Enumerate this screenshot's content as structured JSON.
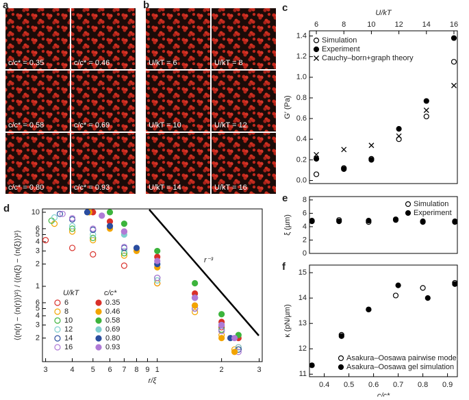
{
  "images": {
    "a": {
      "panel_label": "a",
      "labels": [
        "c/c* = 0.35",
        "c/c* = 0.46",
        "c/c* = 0.58",
        "c/c* = 0.69",
        "c/c* = 0.80",
        "c/c* = 0.93"
      ]
    },
    "b": {
      "panel_label": "b",
      "labels": [
        "U/kT = 6",
        "U/kT = 8",
        "U/kT = 10",
        "U/kT = 12",
        "U/kT = 14",
        "U/kT = 16"
      ]
    }
  },
  "chart_data": [
    {
      "type": "scatter",
      "panel_label": "c",
      "xlabel": "U/kT",
      "ylabel": "G′ (Pa)",
      "xaxis_position": "top",
      "legend": "upper left",
      "x": [
        6,
        8,
        10,
        12,
        14,
        16
      ],
      "xlim": [
        5.5,
        16.25
      ],
      "xticks": [
        6,
        8,
        10,
        12,
        14,
        16
      ],
      "ylim": [
        -0.03,
        1.45
      ],
      "yticks": [
        {
          "value": 0,
          "label": "0.0"
        },
        0.2,
        0.4,
        0.6,
        0.8,
        {
          "value": 1,
          "label": "1.0"
        },
        1.2,
        1.4
      ],
      "series": [
        {
          "name": "Simulation",
          "marker": "open",
          "color": "#000000",
          "values": [
            0.06,
            0.12,
            0.21,
            0.4,
            0.62,
            1.15
          ]
        },
        {
          "name": "Experiment",
          "marker": "filled",
          "color": "#000000",
          "values": [
            0.21,
            0.11,
            0.2,
            0.5,
            0.77,
            1.38
          ]
        },
        {
          "name": "Cauchy–born+graph theory",
          "marker": "x",
          "color": "#000000",
          "values": [
            0.25,
            0.3,
            0.34,
            0.43,
            0.68,
            0.92
          ]
        }
      ]
    },
    {
      "type": "scatter",
      "panel_label": "e",
      "ylabel": "ξ (µm)",
      "legend": "upper right",
      "x": [
        0.35,
        0.46,
        0.58,
        0.69,
        0.8,
        0.93
      ],
      "xlim": [
        0.34,
        0.94
      ],
      "ylim": [
        0,
        8.5
      ],
      "yticks": [
        0,
        2,
        4,
        6,
        8
      ],
      "series": [
        {
          "name": "Simulation",
          "marker": "open",
          "color": "#000000",
          "values": [
            4.9,
            5.0,
            4.7,
            5.1,
            4.8,
            4.8
          ]
        },
        {
          "name": "Experiment",
          "marker": "filled",
          "color": "#000000",
          "values": [
            4.8,
            4.8,
            4.9,
            5.0,
            4.7,
            4.7
          ]
        }
      ]
    },
    {
      "type": "scatter",
      "panel_label": "f",
      "xlabel": "c/c*",
      "ylabel": "κ (pN/µm)",
      "legend": "lower right",
      "xlim": [
        0.34,
        0.94
      ],
      "xticks": [
        0.4,
        0.5,
        0.6,
        0.7,
        0.8,
        0.9
      ],
      "ylim": [
        10.9,
        15.3
      ],
      "yticks": [
        11,
        12,
        13,
        14,
        15
      ],
      "series": [
        {
          "name": "Asakura–Oosawa pairwise model",
          "marker": "open",
          "color": "#000000",
          "x": [
            0.47,
            0.58,
            0.69,
            0.8,
            0.93
          ],
          "values": [
            12.55,
            13.55,
            14.1,
            14.4,
            14.6
          ]
        },
        {
          "name": "Asakura–Oosawa gel simulation",
          "marker": "filled",
          "color": "#000000",
          "x": [
            0.35,
            0.47,
            0.58,
            0.7,
            0.82,
            0.93
          ],
          "values": [
            11.35,
            12.5,
            13.55,
            14.5,
            14.0,
            14.55
          ]
        }
      ]
    },
    {
      "type": "scatter",
      "panel_label": "d",
      "xlabel": "r/ξ",
      "ylabel": "⟨(n(r) − ⟨n(r)⟩)²⟩ / ⟨(n(ξ) − ⟨n(ξ)⟩)²⟩",
      "xlog": true,
      "ylog": true,
      "legend_titles": [
        "U/kT",
        "c/c*"
      ],
      "annotation": "r⁻³",
      "xlim": [
        0.29,
        3.1
      ],
      "xticks": [
        {
          "value": 0.3,
          "label": "3"
        },
        {
          "value": 0.4,
          "label": "4"
        },
        {
          "value": 0.5,
          "label": "5"
        },
        {
          "value": 0.6,
          "label": "6"
        },
        {
          "value": 0.7,
          "label": "7"
        },
        {
          "value": 0.8,
          "label": "8"
        },
        {
          "value": 0.9,
          "label": "9"
        },
        1,
        2,
        3
      ],
      "ylim": [
        0.096,
        11.1
      ],
      "yticks": [
        {
          "value": 0.2,
          "label": "2"
        },
        {
          "value": 0.3,
          "label": "3"
        },
        {
          "value": 0.4,
          "label": "4"
        },
        {
          "value": 0.5,
          "label": "5"
        },
        {
          "value": 0.6,
          "label": "6"
        },
        1,
        2,
        3,
        4,
        5,
        6,
        10
      ],
      "series": [
        {
          "name": "6",
          "marker": "open",
          "color": "#d9302a",
          "x": [
            0.3,
            0.4,
            0.5,
            0.7,
            1,
            1.5,
            2,
            2.4
          ],
          "values": [
            4.2,
            3.3,
            2.7,
            1.9,
            1.1,
            0.55,
            0.28,
            0.15
          ]
        },
        {
          "name": "8",
          "marker": "open",
          "color": "#f2a400",
          "x": [
            0.33,
            0.4,
            0.5,
            0.7,
            1,
            1.5,
            2,
            2.3
          ],
          "values": [
            7,
            5.5,
            4.2,
            2.6,
            1.1,
            0.45,
            0.22,
            0.14
          ]
        },
        {
          "name": "10",
          "marker": "open",
          "color": "#3cb43c",
          "x": [
            0.32,
            0.4,
            0.5,
            0.7,
            1,
            1.5,
            2,
            2.4
          ],
          "values": [
            7.7,
            6,
            4.5,
            2.8,
            1.2,
            0.5,
            0.26,
            0.14
          ]
        },
        {
          "name": "12",
          "marker": "open",
          "color": "#7fcfcf",
          "x": [
            0.33,
            0.4,
            0.5,
            0.7,
            1,
            1.5,
            2,
            2.4
          ],
          "values": [
            8.5,
            6.5,
            5,
            3,
            1.2,
            0.5,
            0.25,
            0.15
          ]
        },
        {
          "name": "14",
          "marker": "open",
          "color": "#2a4d9f",
          "x": [
            0.35,
            0.4,
            0.5,
            0.7,
            1,
            1.5,
            2,
            2.4
          ],
          "values": [
            9.5,
            8,
            5.8,
            3.3,
            1.3,
            0.5,
            0.25,
            0.14
          ]
        },
        {
          "name": "16",
          "marker": "open",
          "color": "#b07ad6",
          "x": [
            0.36,
            0.4,
            0.5,
            0.7,
            1,
            1.5,
            2,
            2.4
          ],
          "values": [
            9.5,
            8.3,
            6,
            3.4,
            1.3,
            0.5,
            0.25,
            0.13
          ]
        },
        {
          "name": "0.35",
          "marker": "filled",
          "color": "#d9302a",
          "x": [
            0.5,
            0.6,
            0.7,
            1,
            1.5,
            2,
            2.4
          ],
          "values": [
            10,
            7.5,
            5.5,
            2.5,
            0.8,
            0.33,
            0.2
          ]
        },
        {
          "name": "0.46",
          "marker": "filled",
          "color": "#f2a400",
          "x": [
            0.48,
            0.6,
            0.8,
            1,
            1.5,
            2,
            2.3
          ],
          "values": [
            10,
            6,
            3,
            1.8,
            0.55,
            0.2,
            0.13
          ]
        },
        {
          "name": "0.58",
          "marker": "filled",
          "color": "#3cb43c",
          "x": [
            0.6,
            0.7,
            1,
            1.5,
            2,
            2.4
          ],
          "values": [
            10,
            7,
            3,
            1.1,
            0.42,
            0.22
          ]
        },
        {
          "name": "0.69",
          "marker": "filled",
          "color": "#7fcfcf",
          "x": [
            0.55,
            0.7,
            1,
            1.5,
            2
          ],
          "values": [
            9,
            5,
            2,
            0.7,
            0.3
          ]
        },
        {
          "name": "0.80",
          "marker": "filled",
          "color": "#2a4d9f",
          "x": [
            0.47,
            0.6,
            0.8,
            1,
            1.5,
            2,
            2.2
          ],
          "values": [
            10,
            6.5,
            3.3,
            2,
            0.7,
            0.3,
            0.2
          ]
        },
        {
          "name": "0.93",
          "marker": "filled",
          "color": "#b07ad6",
          "x": [
            0.55,
            0.7,
            1,
            1.5,
            2,
            2.3
          ],
          "values": [
            9,
            5.5,
            2.2,
            0.7,
            0.3,
            0.2
          ]
        }
      ]
    }
  ]
}
